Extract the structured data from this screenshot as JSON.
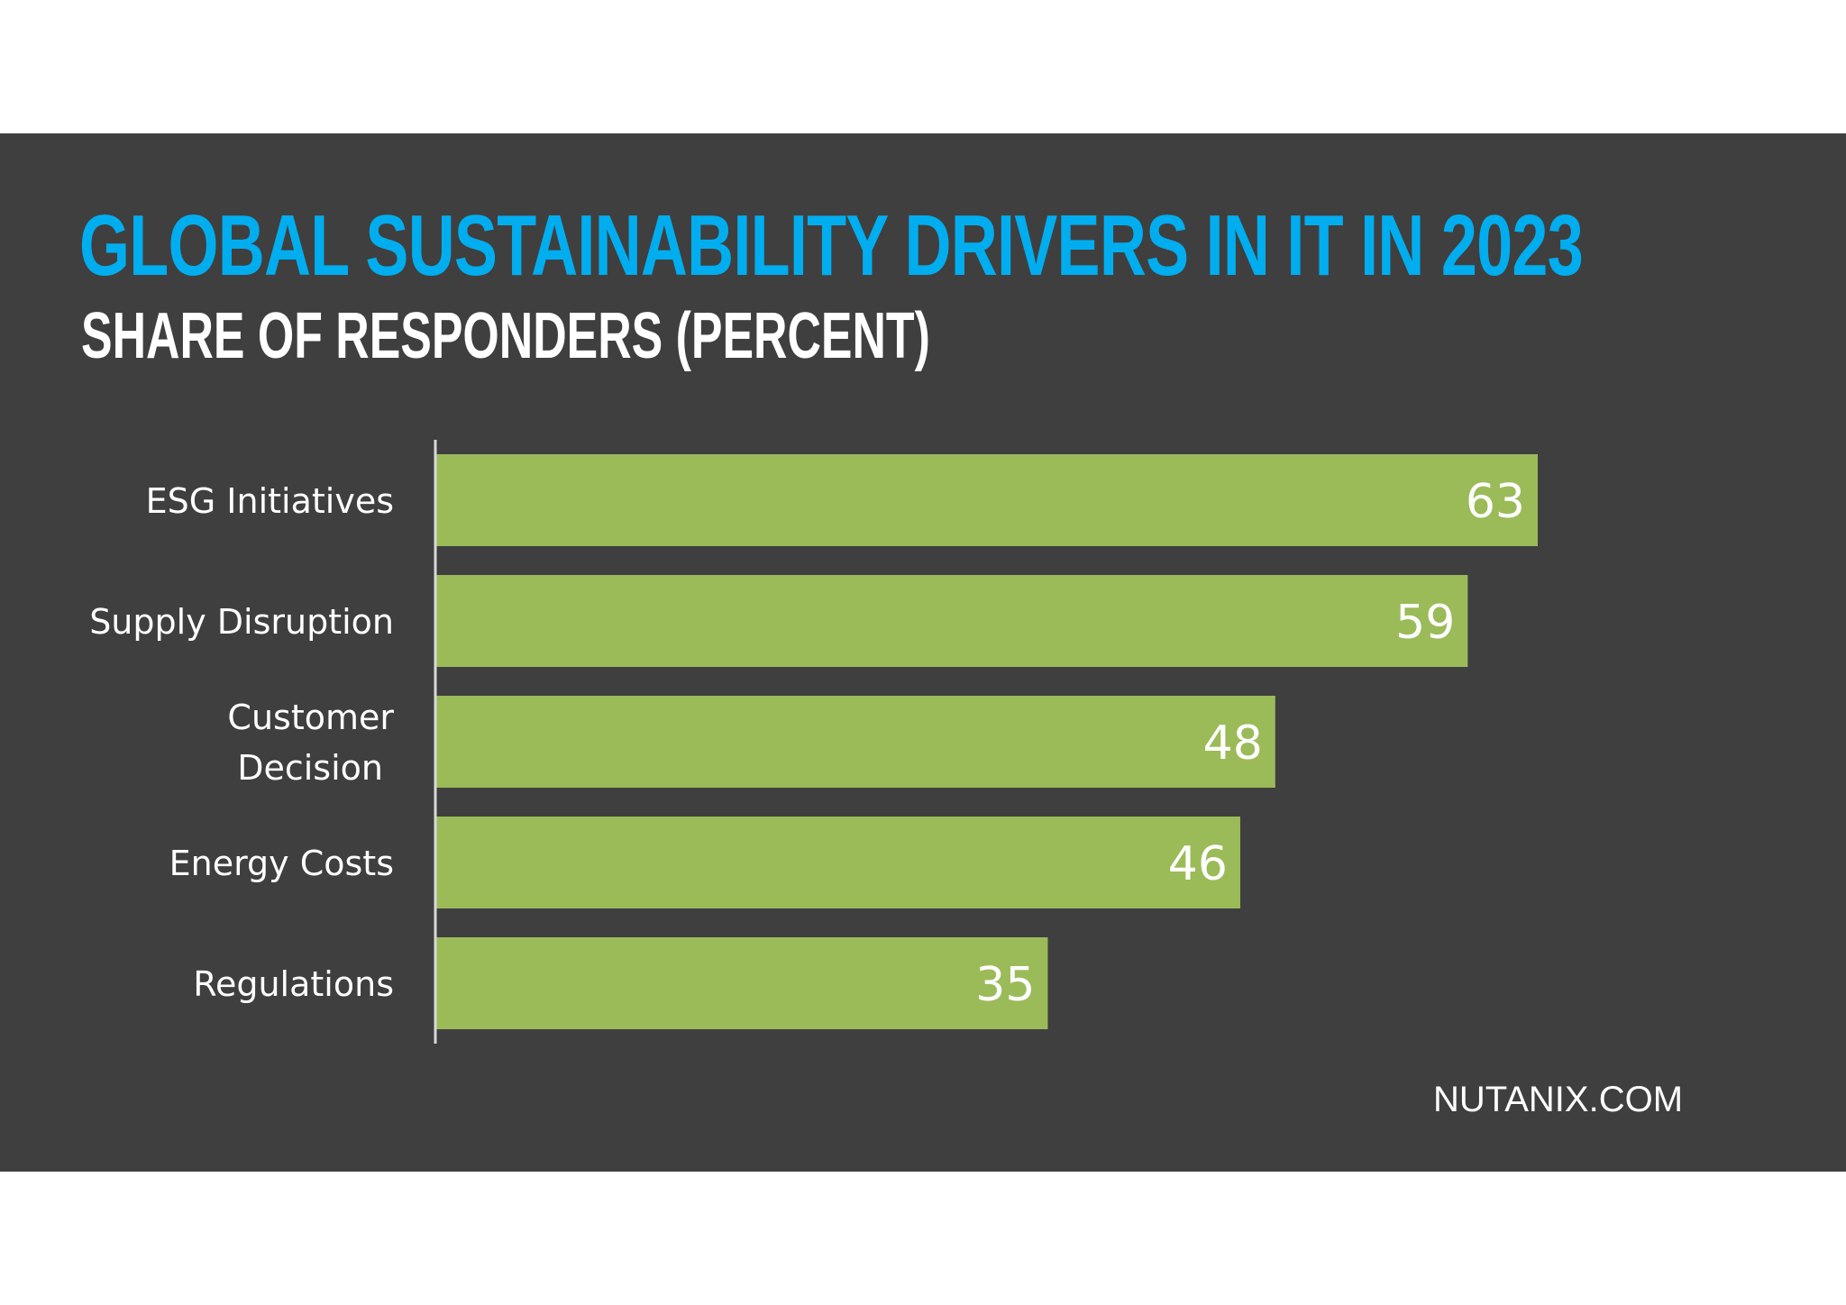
{
  "colors": {
    "background": "#3f3f3f",
    "title": "#00aeef",
    "subtitle": "#ffffff",
    "bar": "#9bbb59",
    "axis": "#d9d9d9",
    "label": "#ffffff"
  },
  "chart_data": {
    "type": "bar",
    "orientation": "horizontal",
    "title": "GLOBAL SUSTAINABILITY DRIVERS IN IT IN 2023",
    "subtitle": "SHARE OF RESPONDERS (PERCENT)",
    "categories": [
      [
        "ESG Initiatives"
      ],
      [
        "Supply Disruption"
      ],
      [
        "Customer",
        "Decision"
      ],
      [
        "Energy Costs"
      ],
      [
        "Regulations"
      ]
    ],
    "values": [
      63,
      59,
      48,
      46,
      35
    ],
    "data_labels": true,
    "grid": false,
    "xlim": [
      0,
      70
    ]
  },
  "footer": {
    "source": "NUTANIX.COM"
  }
}
